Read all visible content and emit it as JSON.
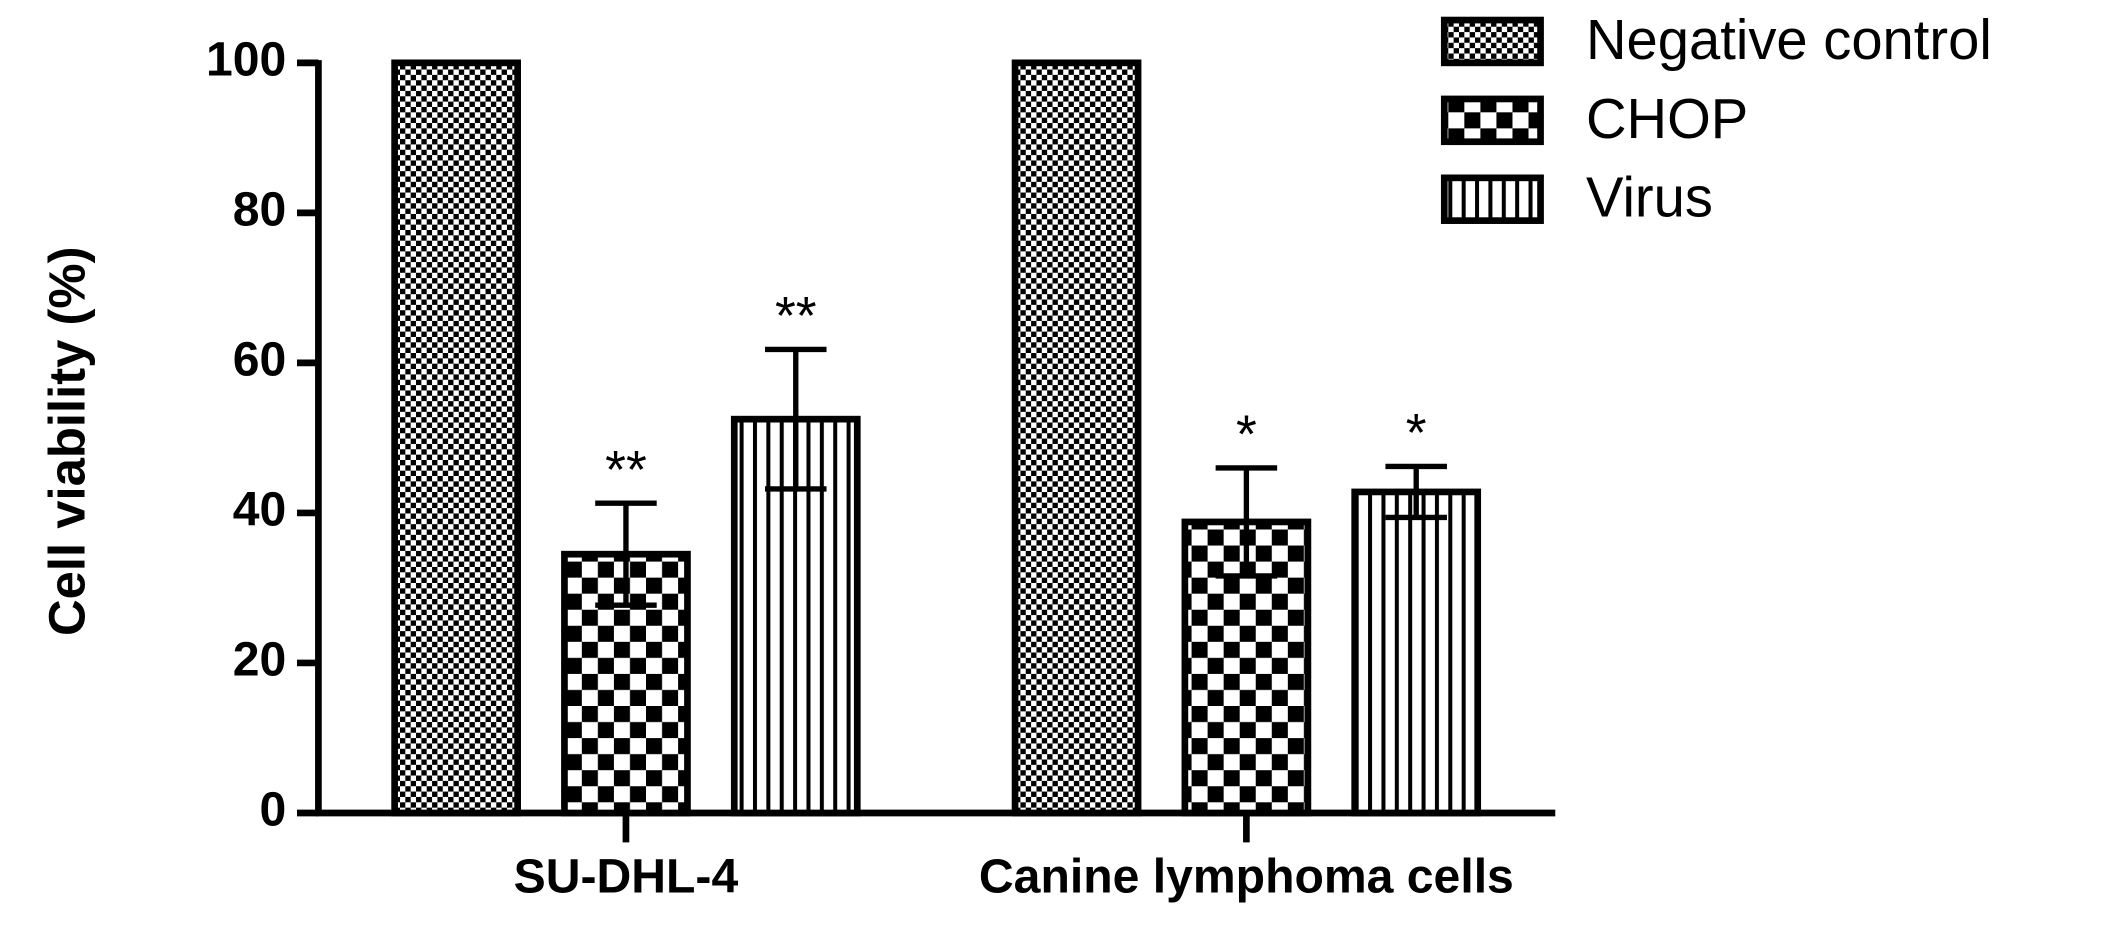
{
  "chart_data": {
    "type": "bar",
    "y_label": "Cell viability (%)",
    "categories": [
      "SU-DHL-4",
      "Canine lymphoma cells"
    ],
    "series": [
      {
        "name": "Negative control",
        "color": "#000000",
        "pattern": "fine-checker",
        "values": [
          100,
          100
        ]
      },
      {
        "name": "CHOP",
        "color": "#000000",
        "pattern": "coarse-checker",
        "values": [
          34.5,
          38.8
        ],
        "errors": [
          6.8,
          7.2
        ],
        "annotations": [
          "**",
          "*"
        ]
      },
      {
        "name": "Virus",
        "color": "#000000",
        "pattern": "vertical-lines",
        "values": [
          52.5,
          42.8
        ],
        "errors": [
          9.3,
          3.4
        ],
        "annotations": [
          "**",
          "*"
        ]
      }
    ],
    "ylim": [
      0,
      100
    ],
    "yticks": [
      0,
      20,
      40,
      60,
      80,
      100
    ],
    "legend": "top-right"
  }
}
